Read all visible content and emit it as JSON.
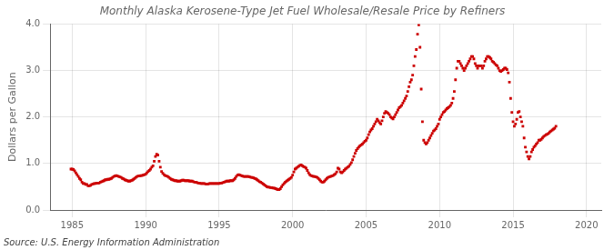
{
  "chart_data": {
    "type": "scatter",
    "title": "Monthly Alaska Kerosene-Type Jet Fuel Wholesale/Resale Price by Refiners",
    "ylabel": "Dollars per Gallon",
    "source": "Source: U.S. Energy Information Administration",
    "color": "#cc0000",
    "marker": "square",
    "grid": true,
    "xlim": [
      1983.5,
      2021
    ],
    "ylim": [
      0.0,
      4.0
    ],
    "xticks": [
      1985,
      1990,
      1995,
      2000,
      2005,
      2010,
      2015,
      2020
    ],
    "yticks": [
      {
        "value": 0.0,
        "label": "0.0"
      },
      {
        "value": 1.0,
        "label": "1.0"
      },
      {
        "value": 2.0,
        "label": "2.0"
      },
      {
        "value": 3.0,
        "label": "3.0"
      },
      {
        "value": 4.0,
        "label": "4.0"
      }
    ],
    "x": [
      1984.917,
      1985.0,
      1985.083,
      1985.167,
      1985.25,
      1985.333,
      1985.417,
      1985.5,
      1985.583,
      1985.667,
      1985.75,
      1985.833,
      1985.917,
      1986.0,
      1986.083,
      1986.167,
      1986.25,
      1986.333,
      1986.417,
      1986.5,
      1986.583,
      1986.667,
      1986.75,
      1986.833,
      1986.917,
      1987.0,
      1987.083,
      1987.167,
      1987.25,
      1987.333,
      1987.417,
      1987.5,
      1987.583,
      1987.667,
      1987.75,
      1987.833,
      1987.917,
      1988.0,
      1988.083,
      1988.167,
      1988.25,
      1988.333,
      1988.417,
      1988.5,
      1988.583,
      1988.667,
      1988.75,
      1988.833,
      1988.917,
      1989.0,
      1989.083,
      1989.167,
      1989.25,
      1989.333,
      1989.417,
      1989.5,
      1989.583,
      1989.667,
      1989.75,
      1989.833,
      1989.917,
      1990.0,
      1990.083,
      1990.167,
      1990.25,
      1990.333,
      1990.417,
      1990.5,
      1990.583,
      1990.667,
      1990.75,
      1990.833,
      1990.917,
      1991.0,
      1991.083,
      1991.167,
      1991.25,
      1991.333,
      1991.417,
      1991.5,
      1991.583,
      1991.667,
      1991.75,
      1991.833,
      1991.917,
      1992.0,
      1992.083,
      1992.167,
      1992.25,
      1992.333,
      1992.417,
      1992.5,
      1992.583,
      1992.667,
      1992.75,
      1992.833,
      1992.917,
      1993.0,
      1993.083,
      1993.167,
      1993.25,
      1993.333,
      1993.417,
      1993.5,
      1993.583,
      1993.667,
      1993.75,
      1993.833,
      1993.917,
      1994.0,
      1994.083,
      1994.167,
      1994.25,
      1994.333,
      1994.417,
      1994.5,
      1994.583,
      1994.667,
      1994.75,
      1994.833,
      1994.917,
      1995.0,
      1995.083,
      1995.167,
      1995.25,
      1995.333,
      1995.417,
      1995.5,
      1995.583,
      1995.667,
      1995.75,
      1995.833,
      1995.917,
      1996.0,
      1996.083,
      1996.167,
      1996.25,
      1996.333,
      1996.417,
      1996.5,
      1996.583,
      1996.667,
      1996.75,
      1996.833,
      1996.917,
      1997.0,
      1997.083,
      1997.167,
      1997.25,
      1997.333,
      1997.417,
      1997.5,
      1997.583,
      1997.667,
      1997.75,
      1997.833,
      1997.917,
      1998.0,
      1998.083,
      1998.167,
      1998.25,
      1998.333,
      1998.417,
      1998.5,
      1998.583,
      1998.667,
      1998.75,
      1998.833,
      1998.917,
      1999.0,
      1999.083,
      1999.167,
      1999.25,
      1999.333,
      1999.417,
      1999.5,
      1999.583,
      1999.667,
      1999.75,
      1999.833,
      1999.917,
      2000.0,
      2000.083,
      2000.167,
      2000.25,
      2000.333,
      2000.417,
      2000.5,
      2000.583,
      2000.667,
      2000.75,
      2000.833,
      2000.917,
      2001.0,
      2001.083,
      2001.167,
      2001.25,
      2001.333,
      2001.417,
      2001.5,
      2001.583,
      2001.667,
      2001.75,
      2001.833,
      2001.917,
      2002.0,
      2002.083,
      2002.167,
      2002.25,
      2002.333,
      2002.417,
      2002.5,
      2002.583,
      2002.667,
      2002.75,
      2002.833,
      2002.917,
      2003.0,
      2003.083,
      2003.167,
      2003.25,
      2003.333,
      2003.417,
      2003.5,
      2003.583,
      2003.667,
      2003.75,
      2003.833,
      2003.917,
      2004.0,
      2004.083,
      2004.167,
      2004.25,
      2004.333,
      2004.417,
      2004.5,
      2004.583,
      2004.667,
      2004.75,
      2004.833,
      2004.917,
      2005.0,
      2005.083,
      2005.167,
      2005.25,
      2005.333,
      2005.417,
      2005.5,
      2005.583,
      2005.667,
      2005.75,
      2005.833,
      2005.917,
      2006.0,
      2006.083,
      2006.167,
      2006.25,
      2006.333,
      2006.417,
      2006.5,
      2006.583,
      2006.667,
      2006.75,
      2006.833,
      2006.917,
      2007.0,
      2007.083,
      2007.167,
      2007.25,
      2007.333,
      2007.417,
      2007.5,
      2007.583,
      2007.667,
      2007.75,
      2007.833,
      2007.917,
      2008.0,
      2008.083,
      2008.167,
      2008.25,
      2008.333,
      2008.417,
      2008.5,
      2008.583,
      2008.667,
      2008.75,
      2008.833,
      2008.917,
      2009.0,
      2009.083,
      2009.167,
      2009.25,
      2009.333,
      2009.417,
      2009.5,
      2009.583,
      2009.667,
      2009.75,
      2009.833,
      2009.917,
      2010.0,
      2010.083,
      2010.167,
      2010.25,
      2010.333,
      2010.417,
      2010.5,
      2010.583,
      2010.667,
      2010.75,
      2010.833,
      2010.917,
      2011.0,
      2011.083,
      2011.167,
      2011.25,
      2011.333,
      2011.417,
      2011.5,
      2011.583,
      2011.667,
      2011.75,
      2011.833,
      2011.917,
      2012.0,
      2012.083,
      2012.167,
      2012.25,
      2012.333,
      2012.417,
      2012.5,
      2012.583,
      2012.667,
      2012.75,
      2012.833,
      2012.917,
      2013.0,
      2013.083,
      2013.167,
      2013.25,
      2013.333,
      2013.417,
      2013.5,
      2013.583,
      2013.667,
      2013.75,
      2013.833,
      2013.917,
      2014.0,
      2014.083,
      2014.167,
      2014.25,
      2014.333,
      2014.417,
      2014.5,
      2014.583,
      2014.667,
      2014.75,
      2014.833,
      2014.917,
      2015.0,
      2015.083,
      2015.167,
      2015.25,
      2015.333,
      2015.417,
      2015.5,
      2015.583,
      2015.667,
      2015.75,
      2015.833,
      2015.917,
      2016.0,
      2016.083,
      2016.167,
      2016.25,
      2016.333,
      2016.417,
      2016.5,
      2016.583,
      2016.667,
      2016.75,
      2016.833,
      2016.917,
      2017.0,
      2017.083,
      2017.167,
      2017.25,
      2017.333,
      2017.417,
      2017.5,
      2017.583,
      2017.667,
      2017.75,
      2017.833,
      2017.917
    ],
    "values": [
      0.88,
      0.88,
      0.87,
      0.84,
      0.8,
      0.76,
      0.72,
      0.68,
      0.65,
      0.6,
      0.57,
      0.57,
      0.55,
      0.55,
      0.52,
      0.52,
      0.53,
      0.55,
      0.56,
      0.57,
      0.57,
      0.58,
      0.58,
      0.58,
      0.6,
      0.61,
      0.62,
      0.63,
      0.65,
      0.65,
      0.66,
      0.66,
      0.67,
      0.68,
      0.7,
      0.72,
      0.73,
      0.74,
      0.73,
      0.72,
      0.71,
      0.7,
      0.68,
      0.67,
      0.65,
      0.64,
      0.63,
      0.62,
      0.62,
      0.63,
      0.64,
      0.66,
      0.68,
      0.7,
      0.72,
      0.73,
      0.73,
      0.74,
      0.74,
      0.75,
      0.76,
      0.77,
      0.8,
      0.83,
      0.85,
      0.88,
      0.92,
      0.95,
      1.05,
      1.15,
      1.2,
      1.18,
      1.05,
      0.92,
      0.83,
      0.79,
      0.76,
      0.74,
      0.73,
      0.72,
      0.7,
      0.68,
      0.66,
      0.65,
      0.64,
      0.63,
      0.63,
      0.62,
      0.62,
      0.62,
      0.63,
      0.64,
      0.64,
      0.63,
      0.63,
      0.63,
      0.63,
      0.62,
      0.62,
      0.62,
      0.61,
      0.6,
      0.6,
      0.59,
      0.58,
      0.58,
      0.57,
      0.57,
      0.57,
      0.57,
      0.56,
      0.56,
      0.56,
      0.57,
      0.57,
      0.57,
      0.57,
      0.57,
      0.57,
      0.57,
      0.57,
      0.57,
      0.58,
      0.58,
      0.59,
      0.6,
      0.61,
      0.62,
      0.62,
      0.62,
      0.63,
      0.63,
      0.63,
      0.65,
      0.68,
      0.72,
      0.75,
      0.76,
      0.75,
      0.74,
      0.73,
      0.72,
      0.72,
      0.72,
      0.72,
      0.72,
      0.71,
      0.7,
      0.7,
      0.69,
      0.68,
      0.67,
      0.65,
      0.63,
      0.61,
      0.6,
      0.58,
      0.56,
      0.54,
      0.52,
      0.5,
      0.49,
      0.49,
      0.48,
      0.48,
      0.47,
      0.47,
      0.46,
      0.45,
      0.44,
      0.44,
      0.46,
      0.5,
      0.54,
      0.57,
      0.6,
      0.62,
      0.64,
      0.66,
      0.68,
      0.7,
      0.75,
      0.82,
      0.88,
      0.9,
      0.92,
      0.94,
      0.96,
      0.97,
      0.95,
      0.93,
      0.92,
      0.9,
      0.85,
      0.8,
      0.76,
      0.74,
      0.73,
      0.72,
      0.72,
      0.71,
      0.7,
      0.68,
      0.65,
      0.62,
      0.6,
      0.6,
      0.62,
      0.65,
      0.68,
      0.7,
      0.71,
      0.72,
      0.73,
      0.74,
      0.76,
      0.78,
      0.82,
      0.9,
      0.88,
      0.82,
      0.8,
      0.82,
      0.85,
      0.88,
      0.9,
      0.92,
      0.94,
      0.98,
      1.02,
      1.08,
      1.15,
      1.22,
      1.28,
      1.32,
      1.35,
      1.38,
      1.4,
      1.42,
      1.45,
      1.48,
      1.5,
      1.55,
      1.62,
      1.68,
      1.72,
      1.75,
      1.8,
      1.85,
      1.9,
      1.95,
      1.92,
      1.88,
      1.85,
      1.92,
      2.0,
      2.08,
      2.12,
      2.1,
      2.08,
      2.05,
      2.0,
      1.98,
      1.96,
      2.0,
      2.05,
      2.1,
      2.15,
      2.2,
      2.22,
      2.25,
      2.3,
      2.35,
      2.4,
      2.45,
      2.55,
      2.65,
      2.75,
      2.8,
      2.9,
      3.1,
      3.3,
      3.45,
      3.78,
      3.98,
      3.5,
      2.6,
      1.9,
      1.5,
      1.45,
      1.42,
      1.45,
      1.5,
      1.55,
      1.6,
      1.65,
      1.7,
      1.72,
      1.75,
      1.8,
      1.85,
      1.95,
      2.0,
      2.05,
      2.1,
      2.12,
      2.15,
      2.18,
      2.2,
      2.22,
      2.25,
      2.3,
      2.4,
      2.55,
      2.8,
      3.05,
      3.2,
      3.2,
      3.15,
      3.1,
      3.05,
      3.0,
      3.05,
      3.1,
      3.15,
      3.2,
      3.25,
      3.3,
      3.3,
      3.25,
      3.15,
      3.1,
      3.05,
      3.1,
      3.1,
      3.1,
      3.05,
      3.1,
      3.2,
      3.25,
      3.3,
      3.3,
      3.28,
      3.25,
      3.2,
      3.18,
      3.15,
      3.12,
      3.1,
      3.05,
      3.0,
      2.98,
      3.0,
      3.02,
      3.05,
      3.05,
      3.02,
      2.95,
      2.75,
      2.4,
      2.1,
      1.9,
      1.8,
      1.85,
      1.95,
      2.1,
      2.12,
      2.0,
      1.9,
      1.8,
      1.55,
      1.35,
      1.25,
      1.15,
      1.1,
      1.15,
      1.25,
      1.3,
      1.35,
      1.38,
      1.42,
      1.45,
      1.5,
      1.5,
      1.52,
      1.55,
      1.58,
      1.6,
      1.62,
      1.63,
      1.65,
      1.68,
      1.7,
      1.72,
      1.74,
      1.76,
      1.8
    ]
  }
}
